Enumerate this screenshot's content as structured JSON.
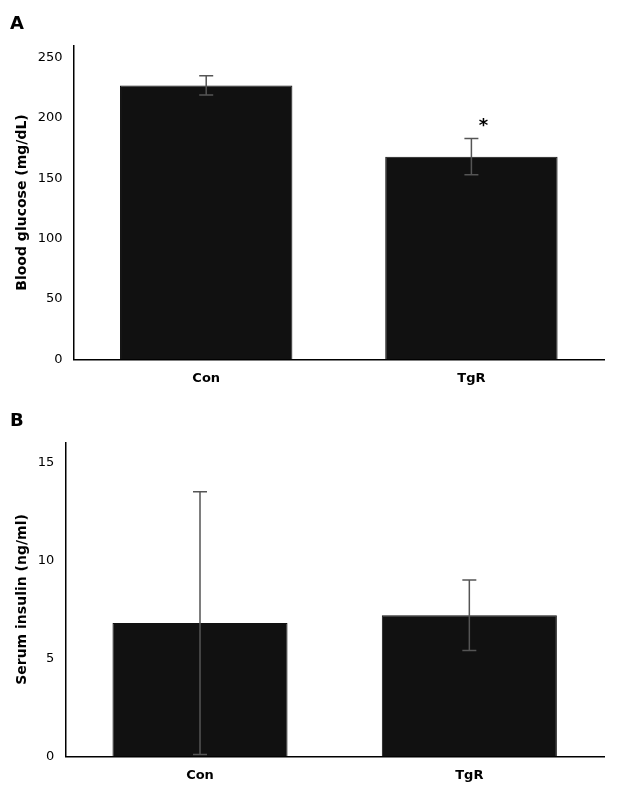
{
  "chart_data": [
    {
      "type": "bar",
      "title": "A",
      "categories": [
        "Con",
        "TgR"
      ],
      "values": [
        227,
        168
      ],
      "errors": [
        8,
        15
      ],
      "ylabel": "Blood glucose (mg/dL)",
      "ylim": [
        0,
        260
      ],
      "yticks": [
        0,
        50,
        100,
        150,
        200,
        250
      ],
      "annotations": [
        null,
        "*"
      ],
      "color": "#111111",
      "error_color": "#555555",
      "grid": false
    },
    {
      "type": "bar",
      "title": "B",
      "categories": [
        "Con",
        "TgR"
      ],
      "values": [
        6.8,
        7.2
      ],
      "errors": [
        6.7,
        1.8
      ],
      "ylabel": "Serum insulin (ng/ml)",
      "ylim": [
        0,
        16
      ],
      "yticks": [
        0,
        5,
        10,
        15
      ],
      "color": "#111111",
      "error_color": "#555555",
      "grid": false
    }
  ]
}
